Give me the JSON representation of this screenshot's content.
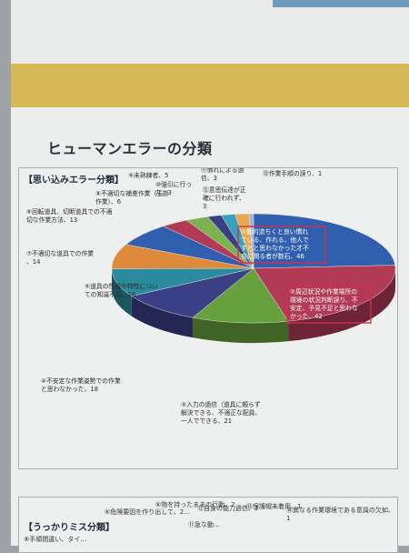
{
  "page": {
    "title": "ヒューマンエラーの分類"
  },
  "chart_data": {
    "type": "pie",
    "title": "【思い込みエラー分類】",
    "series": [
      {
        "label": "①動的流ちくと良い慣れている、作れる、他人ですとと思わなかった才不良に関る者が数石",
        "value": 46,
        "color": "#2f5fae"
      },
      {
        "label": "②周辺状況や作業場所の環境の状況判断誤り、不安定、予見不足と思わなかった",
        "value": 42,
        "color": "#b23a57"
      },
      {
        "label": "③入力の過信（道具に頼らず解決できる、不適正な配員、一人でできる）",
        "value": 21,
        "color": "#66a13d"
      },
      {
        "label": "④不安定な作業姿勢での作業と思わなかった",
        "value": 18,
        "color": "#3a3f86"
      },
      {
        "label": "⑤道具の性能や特性についての知識不足",
        "value": 16,
        "color": "#2a8b9e"
      },
      {
        "label": "⑦不適切な道具での作業",
        "value": 14,
        "color": "#df8a3a"
      },
      {
        "label": "⑥回転道具、切断道具での不適切な作業方法",
        "value": 13,
        "color": "#2f5fae"
      },
      {
        "label": "⑧不適切な補差作業（玉掛作業）",
        "value": 6,
        "color": "#b23a57"
      },
      {
        "label": "⑨未熟練者",
        "value": 5,
        "color": "#7bb24f"
      },
      {
        "label": "⑩強引に行った",
        "value": 3,
        "color": "#3a3f86"
      },
      {
        "label": "⑪慣れによる過信",
        "value": 3,
        "color": "#3aa0b8"
      },
      {
        "label": "⑫意思伝達が正確に行われず",
        "value": 3,
        "color": "#e9a74b"
      },
      {
        "label": "⑬作業手順の誤り",
        "value": 1,
        "color": "#9bb7df"
      }
    ],
    "data_labels": [
      {
        "text": "①動的流ちくと良い慣れている、作れる、他人ですとと思わなかった才不良に関る者が数石、46",
        "highlight": true
      },
      {
        "text": "②周辺状況や作業場所の環境の状況判断誤り、不安定、予見不足と思わなかった、42",
        "highlight": true
      },
      {
        "text": "③入力の過信（道具に頼らず解決できる、不適正な配員、一人でできる、21",
        "highlight": false
      },
      {
        "text": "④不安定な作業姿勢での作業と思わなかった、18",
        "highlight": false
      },
      {
        "text": "⑤道具の性能や特性についての知識不足、16",
        "highlight": false
      },
      {
        "text": "⑦不適切な道具での作業、14",
        "highlight": false
      },
      {
        "text": "⑥回転道具、切断道具での不適切な作業方法、13",
        "highlight": false
      },
      {
        "text": "⑧不適切な補差作業（玉掛作業）、6",
        "highlight": false
      },
      {
        "text": "⑨未熟練者、5",
        "highlight": false
      },
      {
        "text": "⑩強引に行った、3",
        "highlight": false
      },
      {
        "text": "⑪慣れによる過信、3",
        "highlight": false
      },
      {
        "text": "⑫意思伝達が正確に行われず、3",
        "highlight": false
      },
      {
        "text": "⑬作業手順の誤り、1",
        "highlight": false
      }
    ]
  },
  "bottom_section": {
    "title": "【うっかりミス分類】",
    "labels": [
      "⑤危険要因を作り出して、2…",
      "⑥物を持ったままの行動、2",
      "⑫自身の能力過信、2",
      "⑬保護帽未着用、1",
      "⑭異なる作業環境である意識の欠如、1",
      "⑧手順間違い、タイ…",
      "⑪急な動…"
    ]
  }
}
